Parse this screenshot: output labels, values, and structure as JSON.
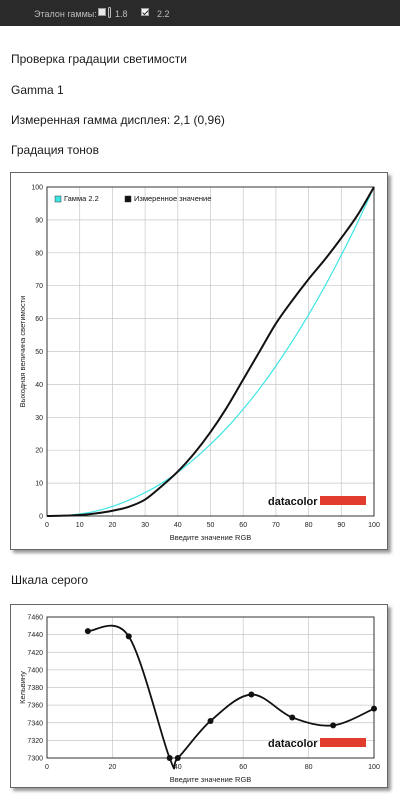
{
  "toolbar": {
    "label": "Эталон гаммы:",
    "options": [
      {
        "label": "1.8",
        "checked": false
      },
      {
        "label": "2.2",
        "checked": true
      }
    ]
  },
  "texts": {
    "title": "Проверка градации светимости",
    "subtitle": "Gamma 1",
    "measured": "Измеренная гамма дисплея: 2,1 (0,96)",
    "tone_heading": "Градация тонов",
    "gray_heading": "Шкала серого"
  },
  "chart_data": [
    {
      "type": "line",
      "title": "",
      "xlabel": "Введите значение RGB",
      "ylabel": "Выходная величина светимости",
      "xlim": [
        0,
        100
      ],
      "ylim": [
        0,
        100
      ],
      "xticks": [
        0,
        10,
        20,
        30,
        40,
        50,
        60,
        70,
        80,
        90,
        100
      ],
      "yticks": [
        0,
        10,
        20,
        30,
        40,
        50,
        60,
        70,
        80,
        90,
        100
      ],
      "grid": true,
      "legend_position": "top-left",
      "logo": "datacolor",
      "series": [
        {
          "name": "Гамма 2.2",
          "color": "#3ee4e4",
          "x": [
            0,
            5,
            10,
            15,
            20,
            25,
            30,
            35,
            40,
            45,
            50,
            55,
            60,
            65,
            70,
            75,
            80,
            85,
            90,
            95,
            100
          ],
          "y": [
            0,
            0.1,
            0.6,
            1.5,
            2.9,
            4.8,
            7.1,
            9.9,
            13.3,
            17.3,
            21.8,
            26.8,
            32.5,
            38.7,
            45.6,
            53.1,
            61.2,
            69.9,
            79.3,
            89.3,
            100
          ]
        },
        {
          "name": "Измеренное значение",
          "color": "#111111",
          "x": [
            0,
            5,
            10,
            15,
            20,
            25,
            30,
            35,
            40,
            45,
            50,
            55,
            60,
            65,
            70,
            75,
            80,
            85,
            90,
            95,
            100
          ],
          "y": [
            0,
            0.1,
            0.3,
            0.8,
            1.6,
            2.8,
            5,
            9,
            13.5,
            19,
            25.5,
            33,
            41.5,
            50,
            58.5,
            65.5,
            72,
            78,
            84.5,
            91.5,
            100
          ]
        }
      ]
    },
    {
      "type": "line",
      "title": "",
      "xlabel": "Введите значение RGB",
      "ylabel": "Кельвину",
      "xlim": [
        0,
        100
      ],
      "ylim": [
        7300,
        7460
      ],
      "xticks": [
        0,
        20,
        40,
        60,
        80,
        100
      ],
      "yticks": [
        7300,
        7320,
        7340,
        7360,
        7380,
        7400,
        7420,
        7440,
        7460
      ],
      "grid": true,
      "logo": "datacolor",
      "series": [
        {
          "color": "#111111",
          "x": [
            12.5,
            25,
            37.5,
            40,
            50,
            62.5,
            75,
            87.5,
            100
          ],
          "y": [
            7444,
            7438,
            7300,
            7300,
            7342,
            7372,
            7346,
            7337,
            7356
          ]
        }
      ]
    }
  ]
}
